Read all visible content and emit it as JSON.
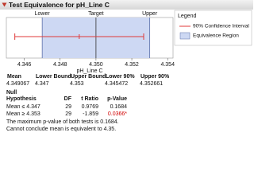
{
  "header": {
    "title": "Test Equivalence for pH_Line C"
  },
  "chart_data": {
    "type": "equivalence",
    "region_labels": [
      "Lower",
      "Target",
      "Upper"
    ],
    "target": 4.35,
    "xlim": [
      4.345,
      4.3543
    ],
    "xticks": [
      4.346,
      4.348,
      {
        "value": 4.35,
        "label": "4.350"
      },
      4.352,
      4.354
    ],
    "x_label": "pH_Line C",
    "ci_color": "#e03a3a",
    "region_color": "#cdd8f3",
    "legend": {
      "title": "Legend",
      "entries": [
        "90% Confidence Interval",
        "Equivalence Region"
      ],
      "position": "right"
    }
  },
  "summary": {
    "columns": [
      "Mean",
      "Lower Bound",
      "Upper Bound",
      "Lower 90%",
      "Upper 90%"
    ],
    "values": [
      4.349067,
      4.347,
      4.353,
      4.345472,
      4.352661
    ]
  },
  "tests": {
    "columns": [
      "Null Hypothesis",
      "DF",
      "t Ratio",
      "p-Value"
    ],
    "rows": [
      [
        "Mean ≤ 4.347",
        29,
        0.9769,
        0.1684
      ],
      [
        "Mean ≥ 4.353",
        29,
        -1.859,
        "0.0366*"
      ]
    ]
  },
  "footer": [
    "The maximum p-value of both tests is 0.1684.",
    "Cannot conclude mean is equivalent to 4.35."
  ]
}
